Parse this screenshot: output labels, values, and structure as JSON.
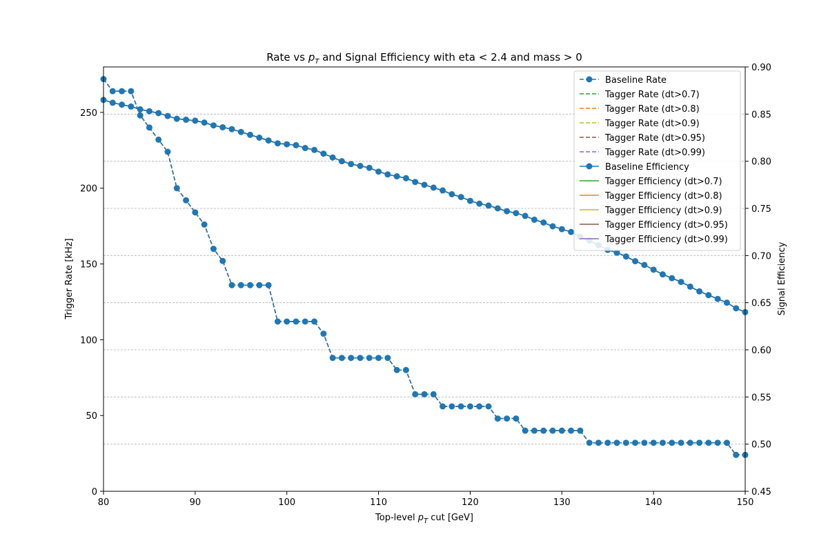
{
  "chart_data": {
    "type": "line",
    "title": "Rate vs pT and Signal Efficiency with eta < 2.4 and mass > 0",
    "title_parts": {
      "pre": "Rate vs ",
      "p": "p",
      "sub": "T",
      "post": " and Signal Efficiency with eta < 2.4 and mass > 0"
    },
    "xlabel": "Top-level pT cut [GeV]",
    "xlabel_parts": {
      "pre": "Top-level ",
      "p": "p",
      "sub": "T",
      "post": " cut [GeV]"
    },
    "ylabel_left": "Trigger Rate [kHz]",
    "ylabel_right": "Signal Efficiency",
    "xlim": [
      80,
      150
    ],
    "ylim_left": [
      0,
      280
    ],
    "ylim_right": [
      0.45,
      0.9
    ],
    "xticks": [
      80,
      90,
      100,
      110,
      120,
      130,
      140,
      150
    ],
    "yticks_left": [
      0,
      50,
      100,
      150,
      200,
      250
    ],
    "yticks_right": [
      0.45,
      0.5,
      0.55,
      0.6,
      0.65,
      0.7,
      0.75,
      0.8,
      0.85,
      0.9
    ],
    "xtick_labels": [
      "80",
      "90",
      "100",
      "110",
      "120",
      "130",
      "140",
      "150"
    ],
    "ytick_left_labels": [
      "0",
      "50",
      "100",
      "150",
      "200",
      "250"
    ],
    "ytick_right_labels": [
      "0.45",
      "0.50",
      "0.55",
      "0.60",
      "0.65",
      "0.70",
      "0.75",
      "0.80",
      "0.85",
      "0.90"
    ],
    "grid": "horizontal dashed on right axis",
    "legend_placement": "top-right",
    "x": [
      80,
      81,
      82,
      83,
      84,
      85,
      86,
      87,
      88,
      89,
      90,
      91,
      92,
      93,
      94,
      95,
      96,
      97,
      98,
      99,
      100,
      101,
      102,
      103,
      104,
      105,
      106,
      107,
      108,
      109,
      110,
      111,
      112,
      113,
      114,
      115,
      116,
      117,
      118,
      119,
      120,
      121,
      122,
      123,
      124,
      125,
      126,
      127,
      128,
      129,
      130,
      131,
      132,
      133,
      134,
      135,
      136,
      137,
      138,
      139,
      140,
      141,
      142,
      143,
      144,
      145,
      146,
      147,
      148,
      149,
      150
    ],
    "rate": [
      272,
      264,
      264,
      264,
      248,
      240,
      232,
      224,
      200,
      192,
      184,
      176,
      160,
      152,
      136,
      136,
      136,
      136,
      136,
      112,
      112,
      112,
      112,
      112,
      104,
      88,
      88,
      88,
      88,
      88,
      88,
      88,
      80,
      80,
      64,
      64,
      64,
      56,
      56,
      56,
      56,
      56,
      56,
      48,
      48,
      48,
      40,
      40,
      40,
      40,
      40,
      40,
      40,
      32,
      32,
      32,
      32,
      32,
      32,
      32,
      32,
      32,
      32,
      32,
      32,
      32,
      32,
      32,
      32,
      24,
      24
    ],
    "efficiency": [
      0.865,
      0.862,
      0.86,
      0.858,
      0.855,
      0.853,
      0.851,
      0.848,
      0.845,
      0.844,
      0.843,
      0.841,
      0.838,
      0.836,
      0.834,
      0.831,
      0.828,
      0.825,
      0.822,
      0.819,
      0.818,
      0.817,
      0.814,
      0.812,
      0.808,
      0.804,
      0.8,
      0.797,
      0.795,
      0.793,
      0.789,
      0.786,
      0.784,
      0.782,
      0.778,
      0.775,
      0.772,
      0.769,
      0.765,
      0.762,
      0.758,
      0.755,
      0.753,
      0.75,
      0.747,
      0.745,
      0.742,
      0.738,
      0.735,
      0.731,
      0.728,
      0.725,
      0.72,
      0.716,
      0.711,
      0.706,
      0.703,
      0.699,
      0.694,
      0.69,
      0.685,
      0.68,
      0.676,
      0.672,
      0.667,
      0.662,
      0.658,
      0.654,
      0.65,
      0.644,
      0.64
    ],
    "series": [
      {
        "name": "Baseline Rate",
        "axis": "left",
        "kind": "rate",
        "style": "dashed",
        "marker": true,
        "color": "#1f77b4"
      },
      {
        "name": "Tagger Rate (dt>0.7)",
        "axis": "left",
        "kind": "rate",
        "style": "dashed",
        "marker": false,
        "color": "#2ca02c"
      },
      {
        "name": "Tagger Rate (dt>0.8)",
        "axis": "left",
        "kind": "rate",
        "style": "dashed",
        "marker": false,
        "color": "#ff7f0e"
      },
      {
        "name": "Tagger Rate (dt>0.9)",
        "axis": "left",
        "kind": "rate",
        "style": "dashed",
        "marker": false,
        "color": "#bcbd22"
      },
      {
        "name": "Tagger Rate (dt>0.95)",
        "axis": "left",
        "kind": "rate",
        "style": "dashed",
        "marker": false,
        "color": "#8c564b"
      },
      {
        "name": "Tagger Rate (dt>0.99)",
        "axis": "left",
        "kind": "rate",
        "style": "dashed",
        "marker": false,
        "color": "#9467bd"
      },
      {
        "name": "Baseline Efficiency",
        "axis": "right",
        "kind": "efficiency",
        "style": "solid",
        "marker": true,
        "color": "#1f77b4"
      },
      {
        "name": "Tagger Efficiency (dt>0.7)",
        "axis": "right",
        "kind": "efficiency",
        "style": "solid",
        "marker": false,
        "color": "#2ca02c"
      },
      {
        "name": "Tagger Efficiency (dt>0.8)",
        "axis": "right",
        "kind": "efficiency",
        "style": "solid",
        "marker": false,
        "color": "#ff7f0e"
      },
      {
        "name": "Tagger Efficiency (dt>0.9)",
        "axis": "right",
        "kind": "efficiency",
        "style": "solid",
        "marker": false,
        "color": "#bcbd22"
      },
      {
        "name": "Tagger Efficiency (dt>0.95)",
        "axis": "right",
        "kind": "efficiency",
        "style": "solid",
        "marker": false,
        "color": "#8c564b"
      },
      {
        "name": "Tagger Efficiency (dt>0.99)",
        "axis": "right",
        "kind": "efficiency",
        "style": "solid",
        "marker": false,
        "color": "#9467bd"
      }
    ]
  }
}
